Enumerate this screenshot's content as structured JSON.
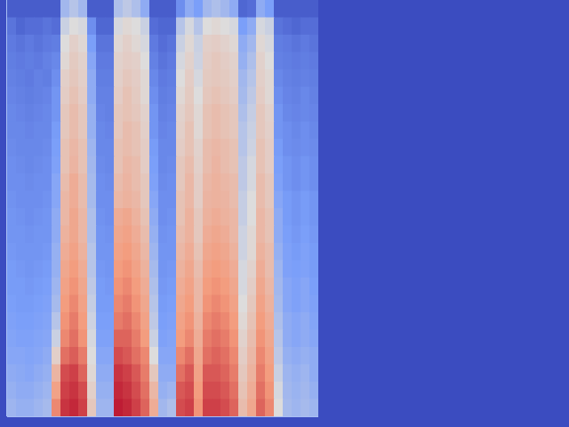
{
  "chart_data": {
    "type": "heatmap",
    "tick_labels": false,
    "color_range": [
      0,
      100
    ],
    "cells": [
      [
        5,
        5,
        5,
        5,
        5,
        5,
        35,
        40,
        35,
        5,
        5,
        5,
        38,
        42,
        38,
        30,
        5,
        5,
        5,
        20,
        30,
        25,
        35,
        38,
        35,
        30,
        8,
        10,
        30,
        25,
        5,
        5,
        5,
        5,
        5
      ],
      [
        12,
        8,
        10,
        10,
        12,
        10,
        45,
        50,
        48,
        20,
        8,
        8,
        48,
        52,
        50,
        45,
        10,
        8,
        8,
        40,
        48,
        40,
        50,
        52,
        50,
        48,
        25,
        30,
        48,
        45,
        12,
        10,
        8,
        10,
        10
      ],
      [
        14,
        12,
        14,
        12,
        14,
        15,
        50,
        55,
        52,
        25,
        12,
        12,
        52,
        55,
        52,
        48,
        14,
        10,
        12,
        45,
        52,
        45,
        55,
        56,
        54,
        52,
        30,
        35,
        52,
        48,
        15,
        14,
        12,
        14,
        12
      ],
      [
        15,
        14,
        15,
        14,
        16,
        18,
        52,
        57,
        54,
        28,
        14,
        14,
        54,
        56,
        55,
        50,
        16,
        12,
        14,
        48,
        54,
        46,
        56,
        58,
        56,
        54,
        32,
        38,
        54,
        50,
        16,
        15,
        14,
        15,
        14
      ],
      [
        16,
        15,
        14,
        16,
        15,
        20,
        55,
        58,
        55,
        30,
        15,
        15,
        55,
        58,
        56,
        52,
        18,
        14,
        15,
        50,
        56,
        48,
        57,
        58,
        57,
        55,
        35,
        40,
        55,
        52,
        18,
        16,
        15,
        16,
        15
      ],
      [
        17,
        16,
        15,
        16,
        17,
        22,
        56,
        60,
        56,
        30,
        16,
        16,
        56,
        60,
        57,
        52,
        20,
        15,
        16,
        52,
        57,
        50,
        58,
        60,
        58,
        56,
        36,
        42,
        56,
        52,
        20,
        17,
        16,
        18,
        16
      ],
      [
        18,
        17,
        16,
        17,
        18,
        22,
        58,
        62,
        58,
        32,
        17,
        16,
        58,
        60,
        58,
        54,
        22,
        16,
        17,
        54,
        58,
        52,
        60,
        62,
        60,
        58,
        38,
        44,
        58,
        54,
        22,
        18,
        17,
        18,
        17
      ],
      [
        18,
        18,
        17,
        18,
        18,
        24,
        58,
        62,
        58,
        32,
        18,
        17,
        58,
        62,
        60,
        55,
        22,
        17,
        18,
        55,
        60,
        52,
        60,
        62,
        60,
        58,
        40,
        45,
        58,
        55,
        22,
        20,
        18,
        20,
        18
      ],
      [
        19,
        18,
        18,
        18,
        19,
        25,
        60,
        64,
        60,
        34,
        18,
        18,
        60,
        62,
        60,
        56,
        24,
        18,
        18,
        56,
        60,
        54,
        62,
        64,
        62,
        60,
        40,
        46,
        60,
        56,
        24,
        20,
        19,
        20,
        19
      ],
      [
        20,
        19,
        18,
        19,
        20,
        26,
        60,
        65,
        60,
        35,
        19,
        18,
        60,
        64,
        62,
        56,
        25,
        18,
        19,
        58,
        62,
        55,
        62,
        65,
        62,
        60,
        42,
        48,
        60,
        56,
        25,
        22,
        20,
        22,
        20
      ],
      [
        20,
        20,
        19,
        20,
        20,
        28,
        62,
        68,
        62,
        36,
        20,
        19,
        62,
        65,
        62,
        58,
        26,
        19,
        20,
        58,
        64,
        56,
        64,
        66,
        64,
        62,
        42,
        48,
        62,
        58,
        26,
        22,
        20,
        22,
        20
      ],
      [
        21,
        20,
        20,
        20,
        21,
        28,
        64,
        68,
        62,
        36,
        20,
        20,
        64,
        66,
        64,
        58,
        28,
        20,
        20,
        60,
        64,
        56,
        65,
        66,
        65,
        62,
        44,
        50,
        62,
        58,
        28,
        24,
        22,
        24,
        22
      ],
      [
        22,
        21,
        20,
        21,
        22,
        30,
        64,
        70,
        64,
        38,
        21,
        20,
        68,
        70,
        66,
        60,
        30,
        20,
        21,
        60,
        66,
        58,
        66,
        68,
        66,
        64,
        44,
        50,
        64,
        60,
        30,
        24,
        22,
        24,
        22
      ],
      [
        22,
        22,
        21,
        22,
        22,
        30,
        66,
        70,
        64,
        38,
        22,
        21,
        70,
        72,
        68,
        62,
        32,
        21,
        22,
        62,
        66,
        58,
        68,
        70,
        68,
        64,
        46,
        52,
        64,
        60,
        30,
        25,
        23,
        25,
        23
      ],
      [
        23,
        22,
        22,
        22,
        23,
        32,
        68,
        72,
        66,
        40,
        22,
        22,
        72,
        74,
        70,
        64,
        34,
        22,
        22,
        64,
        68,
        60,
        70,
        72,
        70,
        66,
        46,
        52,
        66,
        62,
        32,
        26,
        24,
        26,
        24
      ],
      [
        24,
        23,
        22,
        23,
        24,
        32,
        70,
        74,
        68,
        40,
        23,
        22,
        74,
        76,
        72,
        66,
        36,
        22,
        23,
        66,
        70,
        62,
        72,
        74,
        72,
        68,
        48,
        54,
        68,
        62,
        34,
        26,
        25,
        26,
        24
      ],
      [
        24,
        24,
        23,
        24,
        25,
        34,
        72,
        76,
        70,
        42,
        24,
        23,
        76,
        78,
        74,
        68,
        38,
        23,
        24,
        68,
        72,
        64,
        74,
        76,
        74,
        70,
        48,
        56,
        70,
        64,
        35,
        28,
        26,
        28,
        25
      ],
      [
        25,
        24,
        24,
        25,
        26,
        36,
        74,
        78,
        72,
        44,
        24,
        24,
        78,
        80,
        76,
        70,
        40,
        24,
        25,
        70,
        74,
        64,
        76,
        78,
        76,
        72,
        50,
        58,
        72,
        66,
        36,
        28,
        26,
        28,
        26
      ],
      [
        26,
        25,
        25,
        26,
        27,
        40,
        76,
        80,
        74,
        46,
        25,
        25,
        80,
        82,
        78,
        72,
        42,
        25,
        26,
        72,
        76,
        66,
        78,
        80,
        78,
        74,
        52,
        60,
        74,
        68,
        38,
        30,
        28,
        30,
        27
      ],
      [
        27,
        26,
        26,
        27,
        28,
        45,
        78,
        82,
        76,
        48,
        26,
        26,
        84,
        84,
        80,
        74,
        45,
        26,
        27,
        74,
        78,
        68,
        80,
        82,
        80,
        76,
        54,
        62,
        76,
        70,
        40,
        30,
        28,
        30,
        28
      ],
      [
        28,
        28,
        27,
        28,
        30,
        55,
        82,
        85,
        80,
        50,
        28,
        28,
        88,
        86,
        82,
        78,
        50,
        28,
        28,
        78,
        82,
        70,
        82,
        84,
        82,
        78,
        56,
        64,
        78,
        72,
        42,
        32,
        30,
        32,
        30
      ],
      [
        30,
        29,
        28,
        30,
        32,
        65,
        88,
        90,
        84,
        52,
        30,
        30,
        92,
        90,
        86,
        80,
        58,
        30,
        30,
        82,
        86,
        72,
        86,
        86,
        84,
        80,
        58,
        66,
        80,
        74,
        45,
        34,
        32,
        34,
        30
      ],
      [
        32,
        30,
        30,
        32,
        34,
        72,
        90,
        92,
        88,
        55,
        32,
        32,
        94,
        92,
        88,
        82,
        64,
        32,
        34,
        86,
        88,
        74,
        88,
        88,
        86,
        82,
        60,
        68,
        82,
        76,
        48,
        35,
        33,
        35,
        32
      ],
      [
        34,
        32,
        32,
        34,
        36,
        78,
        92,
        94,
        90,
        58,
        34,
        34,
        96,
        94,
        90,
        84,
        68,
        35,
        38,
        88,
        90,
        76,
        90,
        90,
        88,
        84,
        62,
        70,
        84,
        78,
        50,
        36,
        34,
        36,
        34
      ]
    ]
  }
}
